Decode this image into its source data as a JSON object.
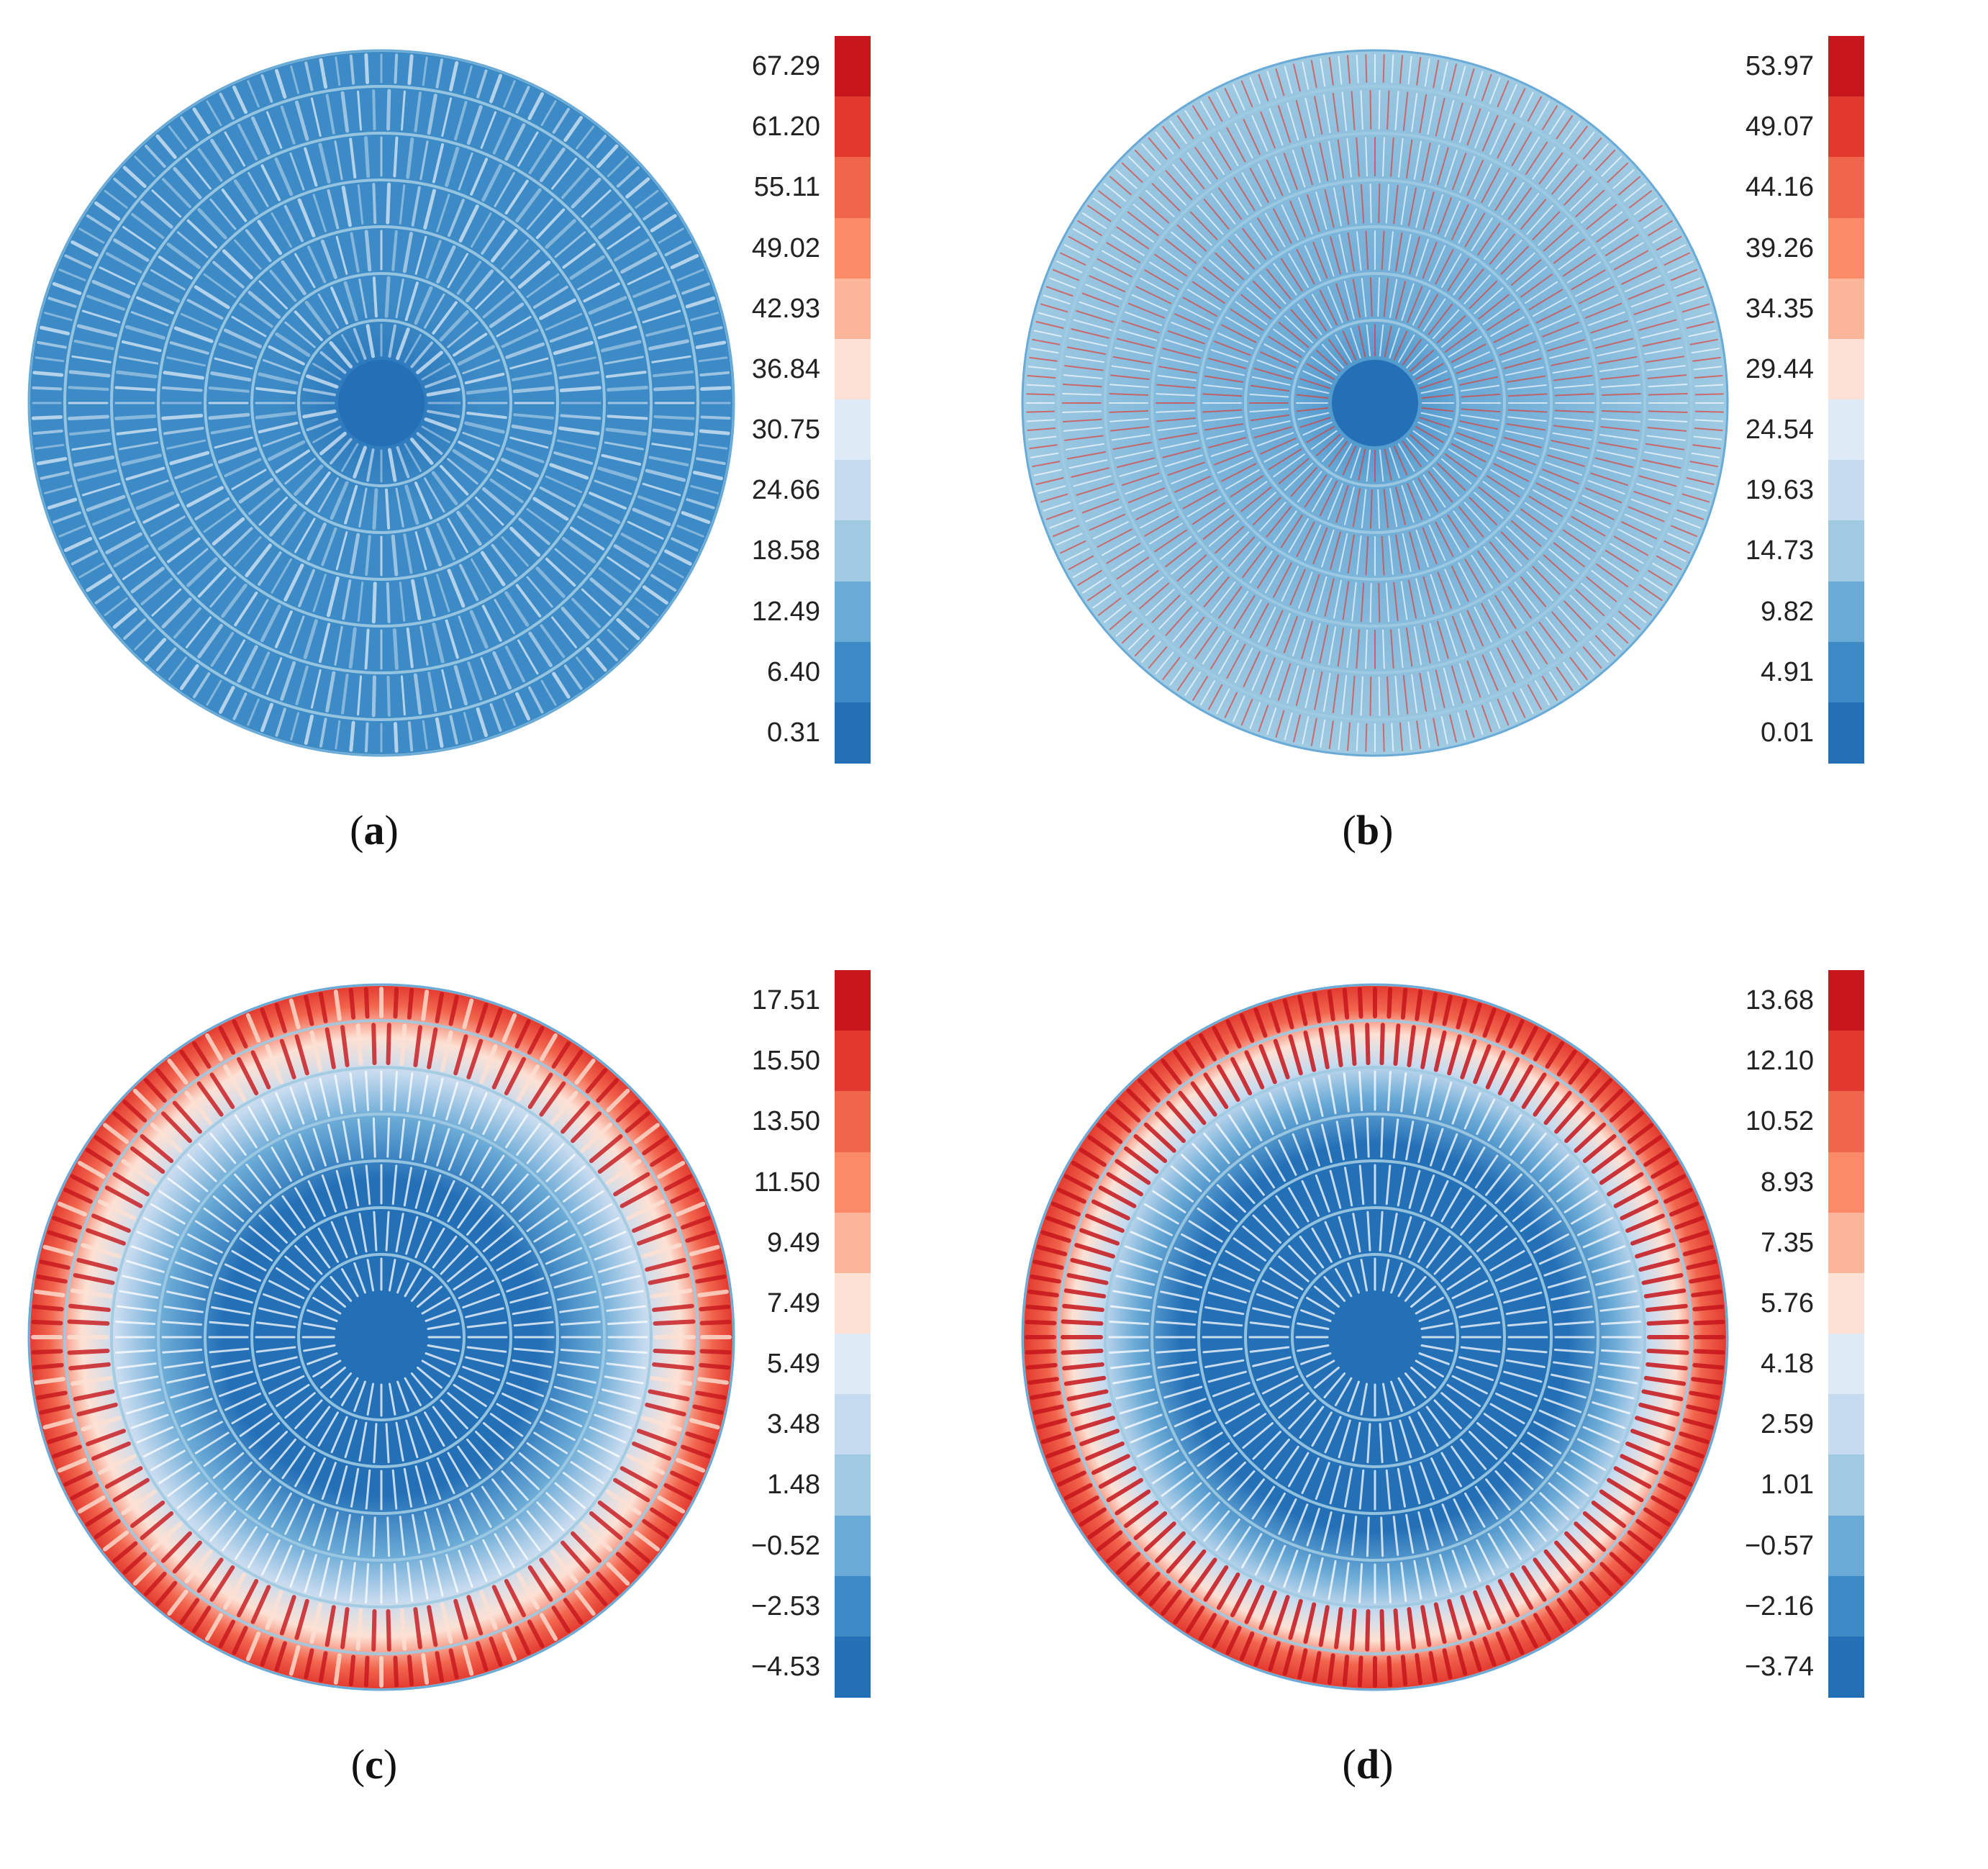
{
  "palette": [
    "#2470b7",
    "#3d8bc6",
    "#6aaad6",
    "#9fcae2",
    "#c6dbef",
    "#deebf7",
    "#fde1d4",
    "#fbb69a",
    "#fb8a68",
    "#f2654d",
    "#e2392f",
    "#c6161c"
  ],
  "panels": [
    {
      "id": "a",
      "caption_open": "(",
      "caption_letter": "a",
      "caption_close": ")",
      "colorbar_labels": [
        "67.29",
        "61.20",
        "55.11",
        "49.02",
        "42.93",
        "36.84",
        "30.75",
        "24.66",
        "18.58",
        "12.49",
        "6.40",
        "0.31"
      ],
      "pattern": "mottled"
    },
    {
      "id": "b",
      "caption_open": "(",
      "caption_letter": "b",
      "caption_close": ")",
      "colorbar_labels": [
        "53.97",
        "49.07",
        "44.16",
        "39.26",
        "34.35",
        "29.44",
        "24.54",
        "19.63",
        "14.73",
        "9.82",
        "4.91",
        "0.01"
      ],
      "pattern": "fine-rings"
    },
    {
      "id": "c",
      "caption_open": "(",
      "caption_letter": "c",
      "caption_close": ")",
      "colorbar_labels": [
        "17.51",
        "15.50",
        "13.50",
        "11.50",
        "9.49",
        "7.49",
        "5.49",
        "3.48",
        "1.48",
        "−0.52",
        "−2.53",
        "−4.53"
      ],
      "pattern": "red-rim-uneven"
    },
    {
      "id": "d",
      "caption_open": "(",
      "caption_letter": "d",
      "caption_close": ")",
      "colorbar_labels": [
        "13.68",
        "12.10",
        "10.52",
        "8.93",
        "7.35",
        "5.76",
        "4.18",
        "2.59",
        "1.01",
        "−0.57",
        "−2.16",
        "−3.74"
      ],
      "pattern": "red-rim-regular"
    }
  ]
}
